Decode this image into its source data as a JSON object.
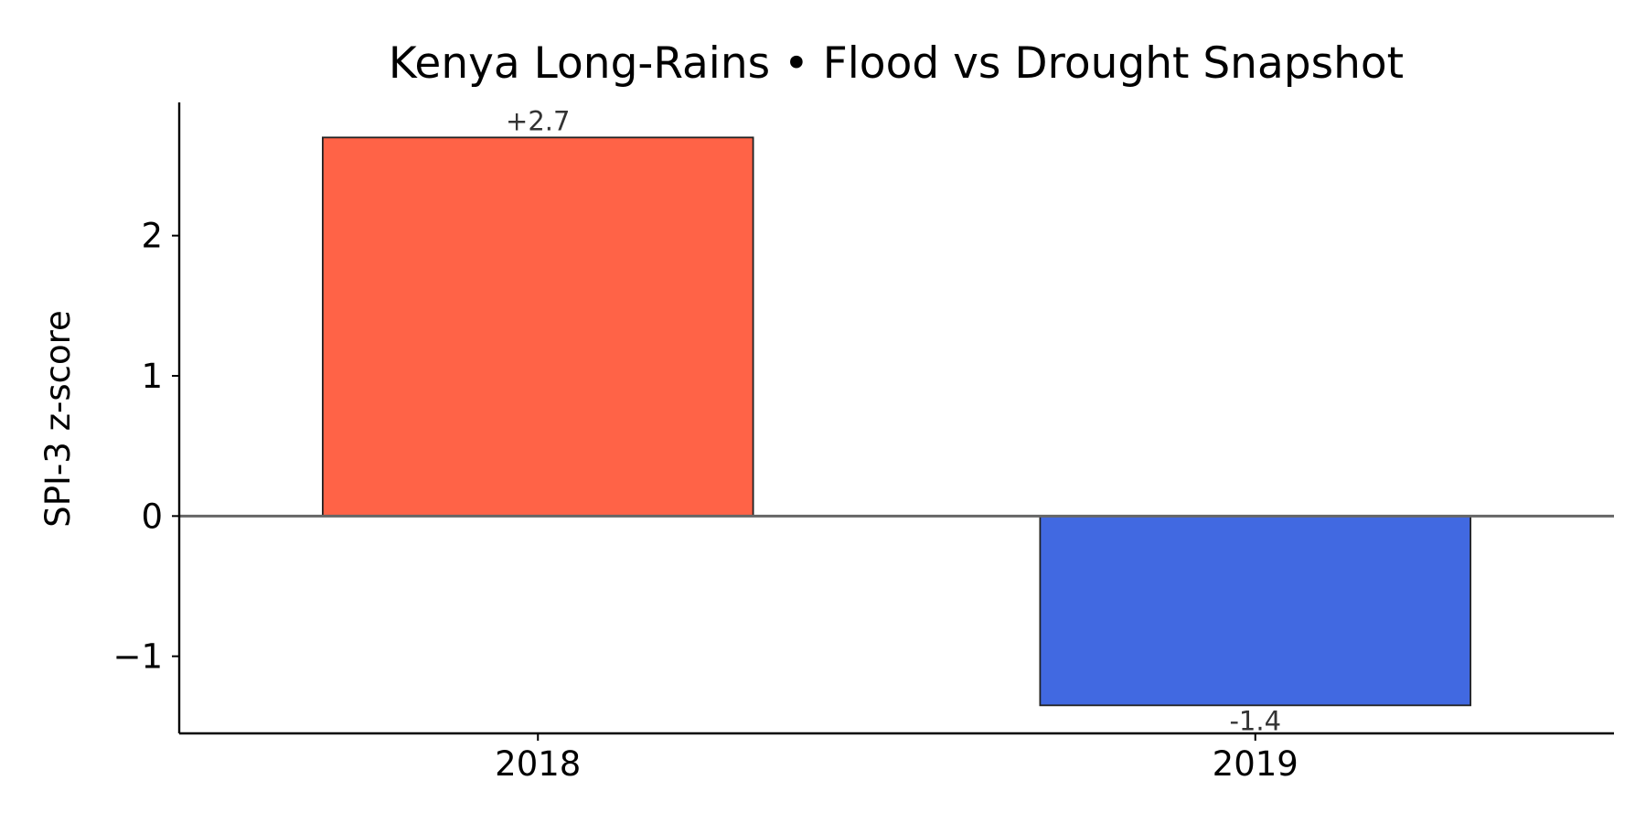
{
  "chart_data": {
    "type": "bar",
    "title": "Kenya Long-Rains • Flood vs Drought Snapshot",
    "xlabel": "",
    "ylabel": "SPI-3 z-score",
    "categories": [
      "2018",
      "2019"
    ],
    "values": [
      2.7,
      -1.35
    ],
    "value_labels": [
      "+2.7",
      "-1.4"
    ],
    "colors": [
      "#FF6347",
      "#4169E1"
    ],
    "ylim": [
      -1.55,
      2.95
    ],
    "yticks": [
      -1,
      0,
      1,
      2
    ],
    "ytick_labels": [
      "−1",
      "0",
      "1",
      "2"
    ],
    "zero_line": true,
    "grid": false,
    "legend": "none"
  }
}
